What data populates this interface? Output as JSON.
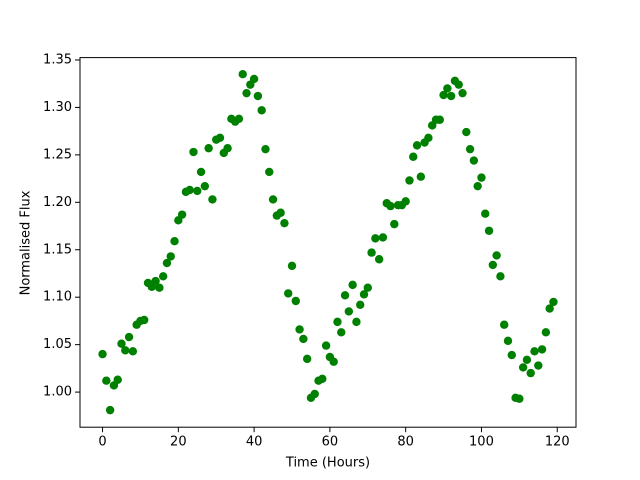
{
  "chart_data": {
    "type": "scatter",
    "x_label": "Time (Hours)",
    "y_label": "Normalised Flux",
    "series": [
      {
        "color": "#008000",
        "x": [
          0,
          1,
          2,
          3,
          4,
          5,
          6,
          7,
          8,
          9,
          10,
          11,
          12,
          13,
          14,
          15,
          16,
          17,
          18,
          19,
          20,
          21,
          22,
          23,
          24,
          25,
          26,
          27,
          28,
          29,
          30,
          31,
          32,
          33,
          34,
          35,
          36,
          37,
          38,
          39,
          40,
          41,
          42,
          43,
          44,
          45,
          46,
          47,
          48,
          49,
          50,
          51,
          52,
          53,
          54,
          55,
          56,
          57,
          58,
          59,
          60,
          61,
          62,
          63,
          64,
          65,
          66,
          67,
          68,
          69,
          70,
          71,
          72,
          73,
          74,
          75,
          76,
          77,
          78,
          79,
          80,
          81,
          82,
          83,
          84,
          85,
          86,
          87,
          88,
          89,
          90,
          91,
          92,
          93,
          94,
          95,
          96,
          97,
          98,
          99,
          100,
          101,
          102,
          103,
          104,
          105,
          106,
          107,
          108,
          109,
          110,
          111,
          112,
          113,
          114,
          115,
          116,
          117,
          118,
          119
        ],
        "values": [
          1.04,
          1.012,
          0.981,
          1.007,
          1.013,
          1.051,
          1.044,
          1.058,
          1.043,
          1.071,
          1.075,
          1.076,
          1.115,
          1.111,
          1.117,
          1.11,
          1.122,
          1.136,
          1.143,
          1.159,
          1.181,
          1.187,
          1.211,
          1.213,
          1.253,
          1.212,
          1.232,
          1.217,
          1.257,
          1.203,
          1.266,
          1.268,
          1.252,
          1.257,
          1.288,
          1.285,
          1.288,
          1.335,
          1.315,
          1.324,
          1.33,
          1.312,
          1.297,
          1.256,
          1.232,
          1.203,
          1.186,
          1.189,
          1.178,
          1.104,
          1.133,
          1.096,
          1.066,
          1.056,
          1.035,
          0.994,
          0.998,
          1.012,
          1.014,
          1.049,
          1.037,
          1.032,
          1.074,
          1.063,
          1.102,
          1.085,
          1.113,
          1.074,
          1.092,
          1.103,
          1.11,
          1.147,
          1.162,
          1.14,
          1.163,
          1.199,
          1.196,
          1.177,
          1.197,
          1.197,
          1.201,
          1.223,
          1.248,
          1.26,
          1.227,
          1.263,
          1.268,
          1.281,
          1.287,
          1.287,
          1.313,
          1.32,
          1.312,
          1.328,
          1.324,
          1.315,
          1.274,
          1.256,
          1.244,
          1.217,
          1.226,
          1.188,
          1.17,
          1.134,
          1.144,
          1.122,
          1.071,
          1.054,
          1.039,
          0.994,
          0.993,
          1.026,
          1.034,
          1.02,
          1.043,
          1.028,
          1.045,
          1.063,
          1.088,
          1.095
        ]
      }
    ],
    "xlim": [
      -5.95,
      124.95
    ],
    "ylim": [
      0.963,
      1.3525
    ],
    "xticks": [
      0,
      20,
      40,
      60,
      80,
      100,
      120
    ],
    "yticks": [
      {
        "value": 1.0,
        "label": "1.00"
      },
      {
        "value": 1.05,
        "label": "1.05"
      },
      {
        "value": 1.1,
        "label": "1.10"
      },
      {
        "value": 1.15,
        "label": "1.15"
      },
      {
        "value": 1.2,
        "label": "1.20"
      },
      {
        "value": 1.25,
        "label": "1.25"
      },
      {
        "value": 1.3,
        "label": "1.30"
      },
      {
        "value": 1.35,
        "label": "1.35"
      }
    ]
  }
}
